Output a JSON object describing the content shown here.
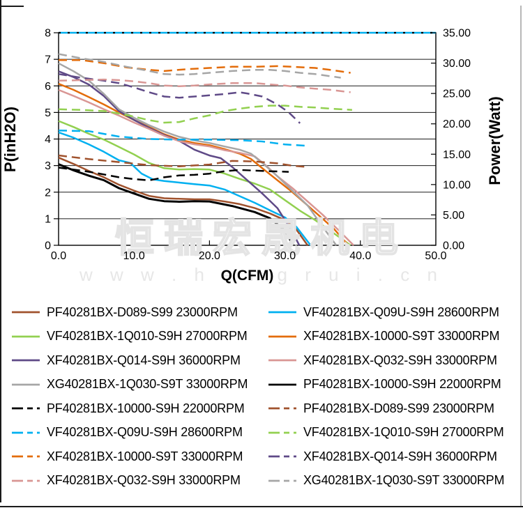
{
  "watermark": {
    "text_cjk": "恒瑞宏晟机电",
    "text_url": "w w w . h e n g r u i . c n"
  },
  "chart_data": {
    "type": "line",
    "title": "",
    "xlabel": "Q(CFM)",
    "ylabel_left": "P(inH2O)",
    "ylabel_right": "Power(Watt)",
    "xlim": [
      0,
      50
    ],
    "ylim_left": [
      0,
      8
    ],
    "ylim_right": [
      0,
      35
    ],
    "x_tick_labels": [
      "0.0",
      "10.0",
      "20.0",
      "30.0",
      "40.0",
      "50.0"
    ],
    "y_left_tick_labels": [
      "0",
      "1",
      "2",
      "3",
      "4",
      "5",
      "6",
      "7",
      "8"
    ],
    "y_right_tick_labels": [
      "0.00",
      "5.00",
      "10.00",
      "15.00",
      "20.00",
      "25.00",
      "30.00",
      "35.00"
    ],
    "grid": "horizontal-only",
    "legend_position": "bottom-two-columns",
    "top_border_accent_color": "#00B0F0",
    "series": [
      {
        "name": "PF40281BX-D089-S99 23000RPM",
        "color": "#A0522D",
        "style": "solid",
        "axis": "left",
        "unit": "inH2O",
        "points": [
          [
            0,
            3.3
          ],
          [
            2,
            3.06
          ],
          [
            4,
            2.8
          ],
          [
            6,
            2.56
          ],
          [
            8,
            2.28
          ],
          [
            10,
            2.06
          ],
          [
            12,
            1.86
          ],
          [
            14,
            1.77
          ],
          [
            16,
            1.75
          ],
          [
            18,
            1.73
          ],
          [
            20,
            1.73
          ],
          [
            22,
            1.65
          ],
          [
            24,
            1.55
          ],
          [
            26,
            1.4
          ],
          [
            28,
            1.2
          ],
          [
            30,
            0.95
          ],
          [
            31.5,
            0.6
          ],
          [
            33,
            0
          ]
        ]
      },
      {
        "name": "VF40281BX-Q09U-S9H 28600RPM",
        "color": "#00B0F0",
        "style": "solid",
        "axis": "left",
        "unit": "inH2O",
        "points": [
          [
            0,
            4.25
          ],
          [
            2,
            4.05
          ],
          [
            4,
            3.8
          ],
          [
            6,
            3.52
          ],
          [
            8,
            3.2
          ],
          [
            9.5,
            3.1
          ],
          [
            11,
            2.7
          ],
          [
            12.5,
            2.48
          ],
          [
            14,
            2.42
          ],
          [
            16,
            2.36
          ],
          [
            18,
            2.3
          ],
          [
            20,
            2.25
          ],
          [
            22,
            2.1
          ],
          [
            24,
            1.85
          ],
          [
            26,
            1.6
          ],
          [
            28,
            1.32
          ],
          [
            30,
            1.05
          ],
          [
            31.5,
            0.7
          ],
          [
            33.4,
            0
          ]
        ]
      },
      {
        "name": "VF40281BX-1Q010-S9H 27000RPM",
        "color": "#92D050",
        "style": "solid",
        "axis": "left",
        "unit": "inH2O",
        "points": [
          [
            0,
            4.68
          ],
          [
            2,
            4.45
          ],
          [
            4,
            4.2
          ],
          [
            6,
            3.98
          ],
          [
            8,
            3.7
          ],
          [
            10,
            3.42
          ],
          [
            12,
            3.1
          ],
          [
            14,
            2.9
          ],
          [
            16,
            2.85
          ],
          [
            18,
            2.87
          ],
          [
            20,
            2.85
          ],
          [
            22,
            2.7
          ],
          [
            24,
            2.5
          ],
          [
            26,
            2.32
          ],
          [
            28,
            2.1
          ],
          [
            30,
            1.7
          ],
          [
            32,
            1.3
          ],
          [
            34,
            0.95
          ],
          [
            36,
            0.55
          ],
          [
            38.7,
            0
          ]
        ]
      },
      {
        "name": "XF40281BX-10000-S9T 33000RPM",
        "color": "#E36C0A",
        "style": "solid",
        "axis": "left",
        "unit": "inH2O",
        "points": [
          [
            0,
            6.08
          ],
          [
            2,
            5.85
          ],
          [
            4,
            5.58
          ],
          [
            6,
            5.3
          ],
          [
            8,
            5.0
          ],
          [
            10,
            4.72
          ],
          [
            12,
            4.45
          ],
          [
            14,
            4.18
          ],
          [
            16,
            3.98
          ],
          [
            18,
            3.85
          ],
          [
            20,
            3.77
          ],
          [
            22,
            3.62
          ],
          [
            24,
            3.45
          ],
          [
            25.5,
            3.25
          ],
          [
            27,
            2.9
          ],
          [
            29,
            2.45
          ],
          [
            31,
            2.0
          ],
          [
            33,
            1.5
          ],
          [
            35,
            1.0
          ],
          [
            36.5,
            0.62
          ],
          [
            38.4,
            0
          ]
        ]
      },
      {
        "name": "XF40281BX-Q014-S9H 36000RPM",
        "color": "#5F4A87",
        "style": "solid",
        "axis": "left",
        "unit": "inH2O",
        "points": [
          [
            0,
            6.55
          ],
          [
            2,
            6.33
          ],
          [
            4,
            6.05
          ],
          [
            6,
            5.62
          ],
          [
            8,
            5.05
          ],
          [
            10,
            4.72
          ],
          [
            12,
            4.42
          ],
          [
            14,
            4.15
          ],
          [
            16,
            3.93
          ],
          [
            18,
            3.6
          ],
          [
            20,
            3.38
          ],
          [
            21.5,
            3.28
          ],
          [
            23,
            2.95
          ],
          [
            25,
            2.45
          ],
          [
            27,
            1.95
          ],
          [
            29,
            1.4
          ],
          [
            31,
            0.5
          ],
          [
            31.9,
            0
          ]
        ]
      },
      {
        "name": "XF40281BX-Q032-S9H 33000RPM",
        "color": "#D99694",
        "style": "solid",
        "axis": "left",
        "unit": "inH2O",
        "points": [
          [
            0,
            5.85
          ],
          [
            2,
            5.62
          ],
          [
            4,
            5.38
          ],
          [
            6,
            5.12
          ],
          [
            8,
            4.88
          ],
          [
            10,
            4.62
          ],
          [
            12,
            4.38
          ],
          [
            14,
            4.12
          ],
          [
            16,
            3.92
          ],
          [
            18,
            3.8
          ],
          [
            20,
            3.72
          ],
          [
            22,
            3.58
          ],
          [
            24,
            3.48
          ],
          [
            26,
            3.35
          ],
          [
            27.5,
            3.0
          ],
          [
            29,
            2.6
          ],
          [
            31,
            2.15
          ],
          [
            33,
            1.65
          ],
          [
            35,
            1.15
          ],
          [
            37,
            0.6
          ],
          [
            39.1,
            0
          ]
        ]
      },
      {
        "name": "XG40281BX-1Q030-S9T 33000RPM",
        "color": "#A6A6A6",
        "style": "solid",
        "axis": "left",
        "unit": "inH2O",
        "points": [
          [
            0,
            6.85
          ],
          [
            2,
            6.55
          ],
          [
            4,
            6.2
          ],
          [
            6,
            5.7
          ],
          [
            8,
            5.12
          ],
          [
            10,
            4.8
          ],
          [
            12,
            4.52
          ],
          [
            14,
            4.28
          ],
          [
            16,
            4.08
          ],
          [
            18,
            3.95
          ],
          [
            20,
            3.85
          ],
          [
            22,
            3.72
          ],
          [
            24,
            3.6
          ],
          [
            25.5,
            3.45
          ],
          [
            27,
            3.1
          ],
          [
            29,
            2.6
          ],
          [
            31,
            2.05
          ],
          [
            33,
            1.5
          ],
          [
            35,
            0.7
          ],
          [
            36.8,
            0
          ]
        ]
      },
      {
        "name": "PF40281BX-10000-S9H 22000RPM",
        "color": "#000000",
        "style": "solid",
        "axis": "left",
        "unit": "inH2O",
        "points": [
          [
            0,
            3.05
          ],
          [
            2,
            2.82
          ],
          [
            4,
            2.62
          ],
          [
            6,
            2.45
          ],
          [
            8,
            2.15
          ],
          [
            10,
            1.95
          ],
          [
            12,
            1.75
          ],
          [
            14,
            1.66
          ],
          [
            16,
            1.64
          ],
          [
            18,
            1.66
          ],
          [
            20,
            1.65
          ],
          [
            23,
            1.48
          ],
          [
            26,
            1.25
          ],
          [
            28,
            1.02
          ],
          [
            30,
            0.55
          ],
          [
            31.1,
            0
          ]
        ]
      },
      {
        "name": "PF40281BX-10000-S9H 22000RPM",
        "color": "#000000",
        "style": "dashed",
        "axis": "right",
        "unit": "Watt",
        "points": [
          [
            0,
            12.8
          ],
          [
            3,
            12.3
          ],
          [
            5,
            11.9
          ],
          [
            8,
            11.2
          ],
          [
            10,
            10.9
          ],
          [
            12,
            10.7
          ],
          [
            14,
            11.2
          ],
          [
            16,
            11.5
          ],
          [
            18,
            11.6
          ],
          [
            20,
            11.8
          ],
          [
            22,
            12.2
          ],
          [
            24,
            12.4
          ],
          [
            26,
            12.3
          ],
          [
            28,
            12.2
          ],
          [
            30.5,
            12.1
          ]
        ]
      },
      {
        "name": "PF40281BX-D089-S99 23000RPM",
        "color": "#A0522D",
        "style": "dashed",
        "axis": "right",
        "unit": "Watt",
        "points": [
          [
            0,
            14.8
          ],
          [
            4,
            14.2
          ],
          [
            8,
            13.7
          ],
          [
            12,
            13.2
          ],
          [
            16,
            13.0
          ],
          [
            20,
            13.3
          ],
          [
            23,
            13.9
          ],
          [
            26,
            13.8
          ],
          [
            29,
            13.5
          ],
          [
            31,
            13.1
          ],
          [
            33,
            12.9
          ]
        ]
      },
      {
        "name": "VF40281BX-Q09U-S9H 28600RPM",
        "color": "#00B0F0",
        "style": "dashed",
        "axis": "right",
        "unit": "Watt",
        "points": [
          [
            0,
            18.9
          ],
          [
            4,
            18.8
          ],
          [
            8,
            17.9
          ],
          [
            12,
            17.5
          ],
          [
            16,
            17.4
          ],
          [
            20,
            17.4
          ],
          [
            24,
            17.3
          ],
          [
            27,
            17.1
          ],
          [
            30,
            16.6
          ],
          [
            32.7,
            16.4
          ]
        ]
      },
      {
        "name": "VF40281BX-1Q010-S9H 27000RPM",
        "color": "#92D050",
        "style": "dashed",
        "axis": "right",
        "unit": "Watt",
        "points": [
          [
            0,
            22.4
          ],
          [
            3,
            22.3
          ],
          [
            6,
            22.1
          ],
          [
            8,
            21.7
          ],
          [
            10,
            21.2
          ],
          [
            12,
            20.6
          ],
          [
            14,
            20.2
          ],
          [
            16,
            20.3
          ],
          [
            18,
            20.9
          ],
          [
            20,
            21.4
          ],
          [
            22,
            22.1
          ],
          [
            24,
            22.5
          ],
          [
            26,
            22.8
          ],
          [
            28,
            23.0
          ],
          [
            30,
            23.0
          ],
          [
            32,
            22.8
          ],
          [
            34,
            22.7
          ],
          [
            36,
            22.5
          ],
          [
            38.9,
            22.3
          ]
        ]
      },
      {
        "name": "XF40281BX-10000-S9T 33000RPM",
        "color": "#E36C0A",
        "style": "dashed",
        "axis": "right",
        "unit": "Watt",
        "points": [
          [
            0,
            30.5
          ],
          [
            3,
            30.5
          ],
          [
            6,
            30.0
          ],
          [
            9,
            29.3
          ],
          [
            12,
            28.9
          ],
          [
            14,
            28.7
          ],
          [
            17,
            29.0
          ],
          [
            20,
            29.2
          ],
          [
            23,
            29.4
          ],
          [
            26,
            29.4
          ],
          [
            29,
            29.5
          ],
          [
            31,
            29.4
          ],
          [
            34,
            29.2
          ],
          [
            36,
            28.9
          ],
          [
            38.7,
            28.4
          ]
        ]
      },
      {
        "name": "XF40281BX-Q014-S9H 36000RPM",
        "color": "#5F4A87",
        "style": "dashed",
        "axis": "right",
        "unit": "Watt",
        "points": [
          [
            0,
            28.2
          ],
          [
            3,
            27.6
          ],
          [
            6,
            27.1
          ],
          [
            8,
            26.7
          ],
          [
            10,
            26.0
          ],
          [
            12,
            25.2
          ],
          [
            14,
            24.5
          ],
          [
            16,
            24.3
          ],
          [
            18,
            24.5
          ],
          [
            20,
            24.7
          ],
          [
            22,
            24.9
          ],
          [
            24,
            25.2
          ],
          [
            25,
            25.0
          ],
          [
            27,
            24.5
          ],
          [
            29,
            23.2
          ],
          [
            30.5,
            21.9
          ],
          [
            32,
            20.1
          ]
        ]
      },
      {
        "name": "XF40281BX-Q032-S9H 33000RPM",
        "color": "#D99694",
        "style": "dashed",
        "axis": "right",
        "unit": "Watt",
        "points": [
          [
            0,
            27.1
          ],
          [
            3,
            27.2
          ],
          [
            6,
            27.3
          ],
          [
            8,
            27.2
          ],
          [
            10,
            27.0
          ],
          [
            12,
            26.7
          ],
          [
            14,
            26.3
          ],
          [
            16,
            26.2
          ],
          [
            18,
            26.3
          ],
          [
            20,
            26.5
          ],
          [
            23,
            26.7
          ],
          [
            26,
            26.7
          ],
          [
            28,
            26.5
          ],
          [
            30,
            26.3
          ],
          [
            32,
            26.0
          ],
          [
            34,
            25.8
          ],
          [
            36,
            25.6
          ],
          [
            38.7,
            25.2
          ]
        ]
      },
      {
        "name": "XG40281BX-1Q030-S9T 33000RPM",
        "color": "#A6A6A6",
        "style": "dashed",
        "axis": "right",
        "unit": "Watt",
        "points": [
          [
            0,
            31.5
          ],
          [
            3,
            30.8
          ],
          [
            6,
            30.2
          ],
          [
            9,
            29.4
          ],
          [
            12,
            28.7
          ],
          [
            14,
            28.2
          ],
          [
            16,
            28.1
          ],
          [
            18,
            28.2
          ],
          [
            20,
            28.4
          ],
          [
            23,
            28.7
          ],
          [
            26,
            28.9
          ],
          [
            28,
            28.9
          ],
          [
            30,
            28.7
          ],
          [
            32,
            28.4
          ],
          [
            34,
            28.2
          ],
          [
            37.4,
            27.6
          ]
        ]
      }
    ]
  }
}
